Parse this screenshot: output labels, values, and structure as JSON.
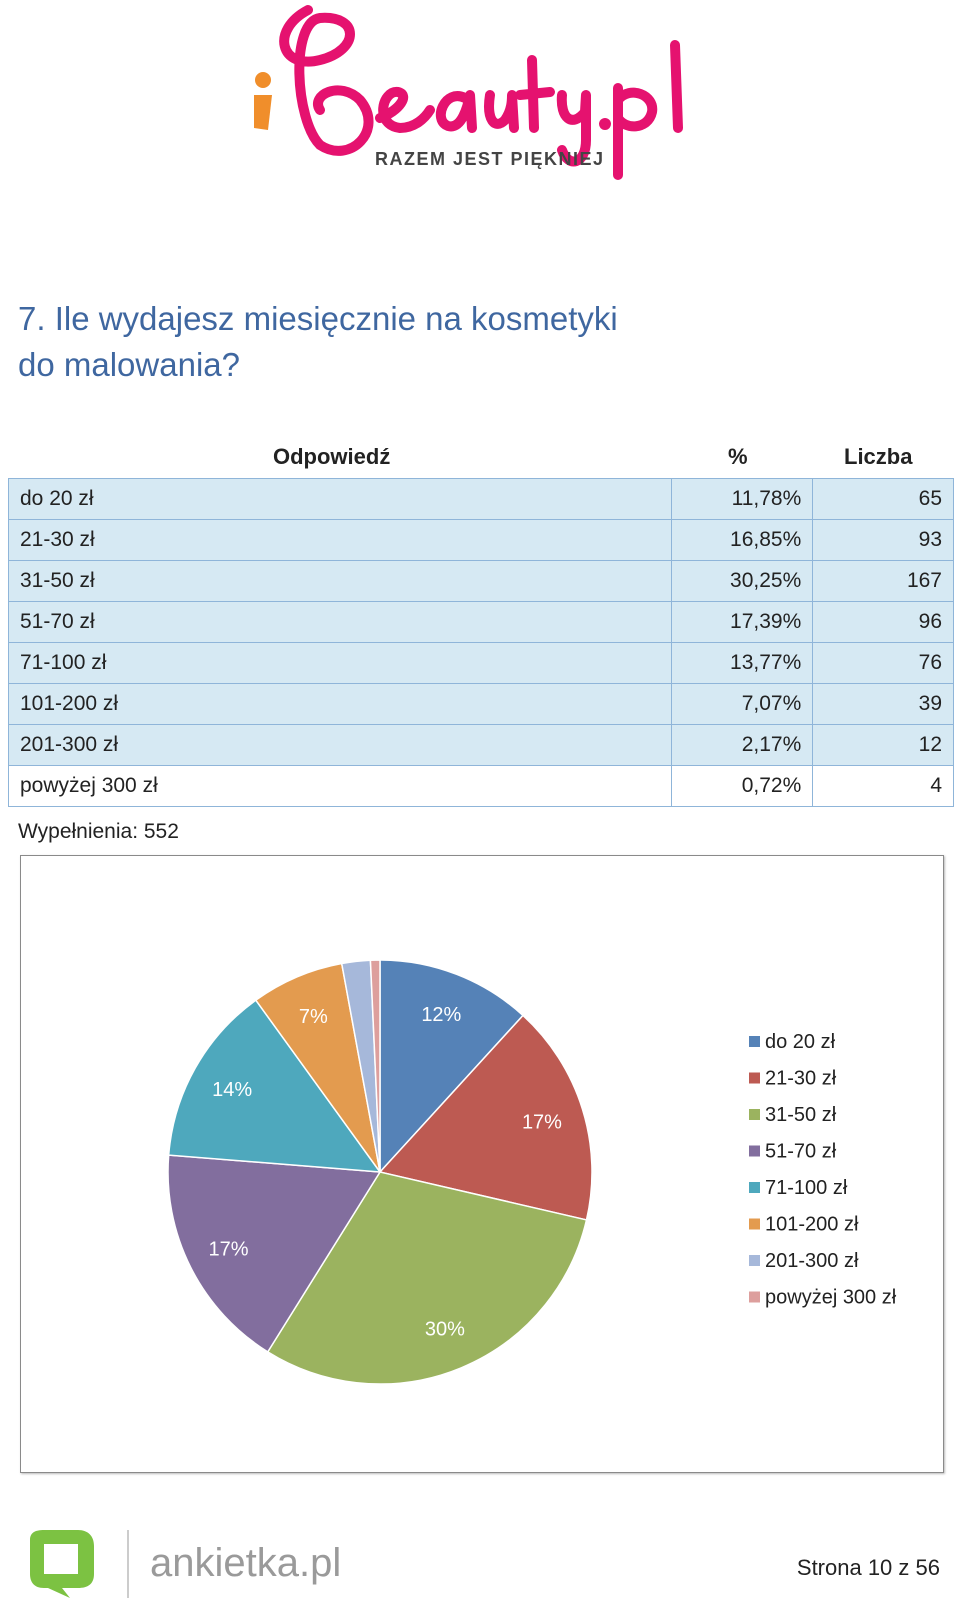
{
  "header": {
    "logo_brand": "iBeauty.pl",
    "logo_tagline": "RAZEM JEST PIĘKNIEJ"
  },
  "question": {
    "title_line1": "7. Ile wydajesz miesięcznie na kosmetyki",
    "title_line2": "do malowania?"
  },
  "table": {
    "col_answer": "Odpowiedź",
    "col_pct": "%",
    "col_count": "Liczba",
    "rows": [
      {
        "label": "do 20 zł",
        "pct": "11,78%",
        "count": "65"
      },
      {
        "label": "21-30 zł",
        "pct": "16,85%",
        "count": "93"
      },
      {
        "label": "31-50 zł",
        "pct": "30,25%",
        "count": "167"
      },
      {
        "label": "51-70 zł",
        "pct": "17,39%",
        "count": "96"
      },
      {
        "label": "71-100 zł",
        "pct": "13,77%",
        "count": "76"
      },
      {
        "label": "101-200 zł",
        "pct": "7,07%",
        "count": "39"
      },
      {
        "label": "201-300 zł",
        "pct": "2,17%",
        "count": "12"
      },
      {
        "label": "powyżej 300 zł",
        "pct": "0,72%",
        "count": "4"
      }
    ],
    "fills": "Wypełnienia: 552"
  },
  "chart_data": {
    "type": "pie",
    "title": "",
    "categories": [
      "do 20 zł",
      "21-30 zł",
      "31-50 zł",
      "51-70 zł",
      "71-100 zł",
      "101-200 zł",
      "201-300 zł",
      "powyżej 300 zł"
    ],
    "values": [
      11.78,
      16.85,
      30.25,
      17.39,
      13.77,
      7.07,
      2.17,
      0.72
    ],
    "data_labels": [
      "12%",
      "17%",
      "30%",
      "17%",
      "14%",
      "7%",
      "",
      ""
    ],
    "colors": [
      "#5582b7",
      "#bd5a52",
      "#9bb35f",
      "#826e9e",
      "#4ea8bd",
      "#e39b4f",
      "#a6b8da",
      "#dd9f9d"
    ],
    "legend_position": "right"
  },
  "footer": {
    "logo_text": "ankietka.pl",
    "page_label": "Strona 10 z 56"
  }
}
